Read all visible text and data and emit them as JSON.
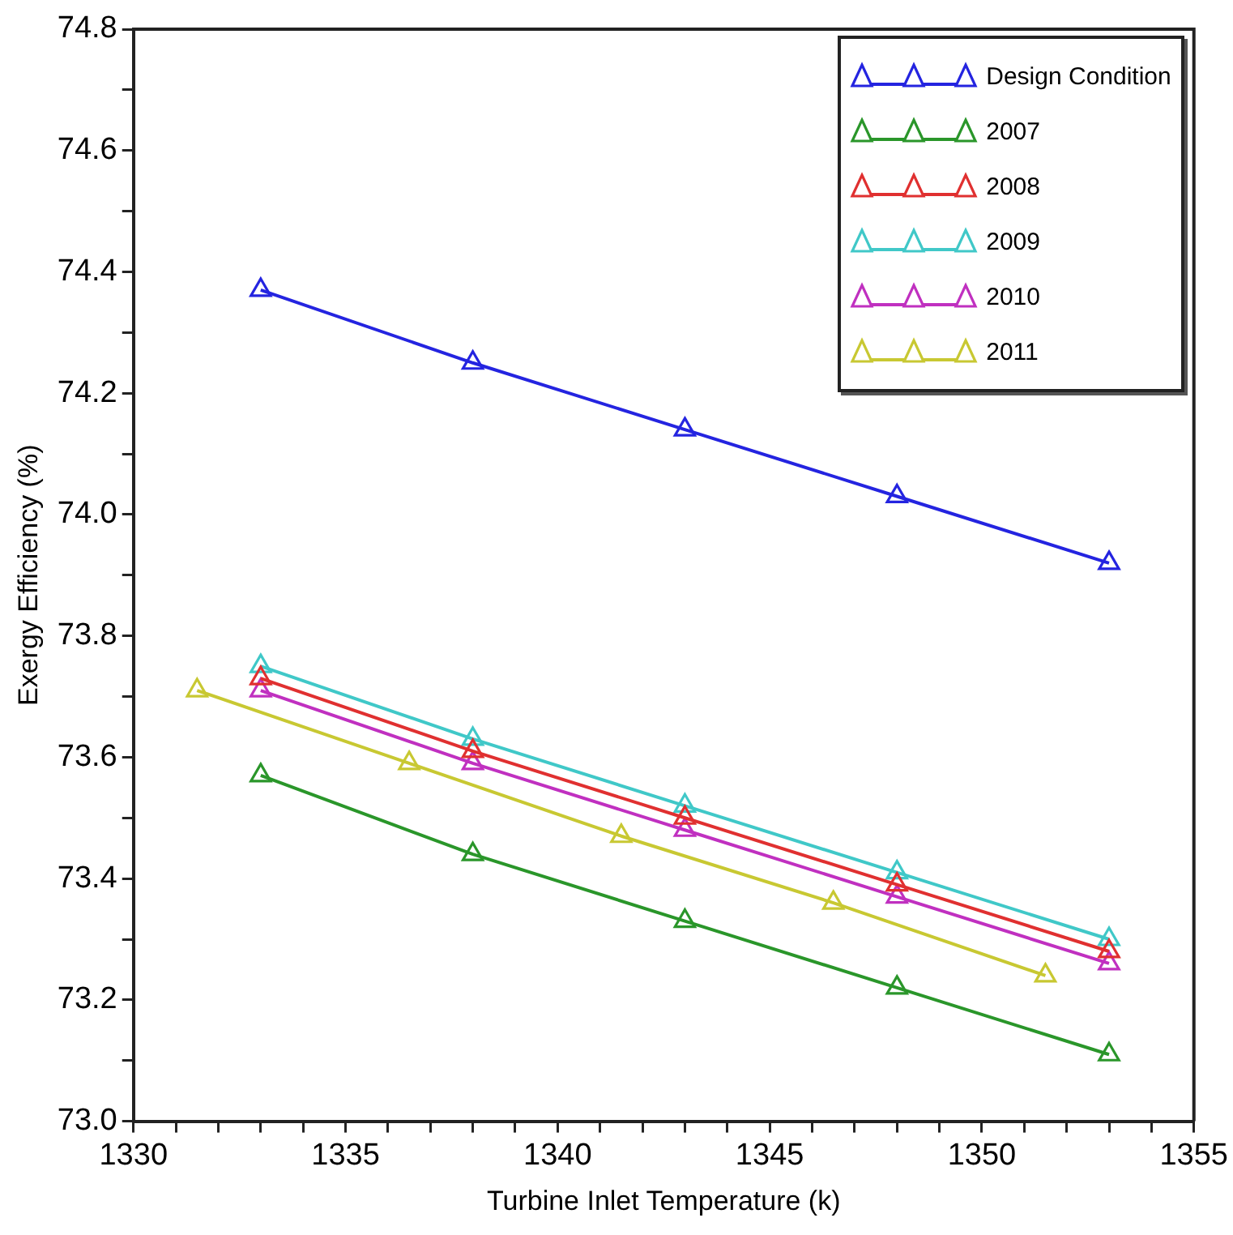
{
  "chart_data": {
    "type": "line",
    "xlabel": "Turbine Inlet Temperature (k)",
    "ylabel": "Exergy Efficiency (%)",
    "xlim": [
      1330,
      1355
    ],
    "xticks": [
      1330,
      {
        "value": 1331,
        "label": null
      },
      {
        "value": 1332,
        "label": null
      },
      {
        "value": 1333,
        "label": null
      },
      {
        "value": 1334,
        "label": null
      },
      1335,
      {
        "value": 1336,
        "label": null
      },
      {
        "value": 1337,
        "label": null
      },
      {
        "value": 1338,
        "label": null
      },
      {
        "value": 1339,
        "label": null
      },
      1340,
      {
        "value": 1341,
        "label": null
      },
      {
        "value": 1342,
        "label": null
      },
      {
        "value": 1343,
        "label": null
      },
      {
        "value": 1344,
        "label": null
      },
      1345,
      {
        "value": 1346,
        "label": null
      },
      {
        "value": 1347,
        "label": null
      },
      {
        "value": 1348,
        "label": null
      },
      {
        "value": 1349,
        "label": null
      },
      1350,
      {
        "value": 1351,
        "label": null
      },
      {
        "value": 1352,
        "label": null
      },
      {
        "value": 1353,
        "label": null
      },
      {
        "value": 1354,
        "label": null
      },
      1355
    ],
    "ylim": [
      73.0,
      74.8
    ],
    "yticks": [
      {
        "value": 73.0,
        "label": "73.0"
      },
      {
        "value": 73.1,
        "label": null
      },
      73.2,
      {
        "value": 73.3,
        "label": null
      },
      73.4,
      {
        "value": 73.5,
        "label": null
      },
      73.6,
      {
        "value": 73.7,
        "label": null
      },
      73.8,
      {
        "value": 73.9,
        "label": null
      },
      {
        "value": 74.0,
        "label": "74.0"
      },
      {
        "value": 74.1,
        "label": null
      },
      74.2,
      {
        "value": 74.3,
        "label": null
      },
      74.4,
      {
        "value": 74.5,
        "label": null
      },
      74.6,
      {
        "value": 74.7,
        "label": null
      },
      74.8
    ],
    "x": [
      1333,
      1338,
      1343,
      1348,
      1353
    ],
    "marker": "triangle",
    "line_style": "solid",
    "grid": false,
    "legend": "top right",
    "series": [
      {
        "name": "Design Condition",
        "color": "#2424e0",
        "values": [
          74.37,
          74.25,
          74.14,
          74.03,
          73.92
        ]
      },
      {
        "name": "2007",
        "color": "#2a962a",
        "values": [
          73.57,
          73.44,
          73.33,
          73.22,
          73.11
        ]
      },
      {
        "name": "2008",
        "color": "#e03030",
        "values": [
          73.73,
          73.61,
          73.5,
          73.39,
          73.28
        ]
      },
      {
        "name": "2009",
        "color": "#40c8c8",
        "values": [
          73.75,
          73.63,
          73.52,
          73.41,
          73.3
        ]
      },
      {
        "name": "2010",
        "color": "#c030c0",
        "values": [
          73.71,
          73.59,
          73.48,
          73.37,
          73.26
        ]
      },
      {
        "name": "2011",
        "color": "#c8c832",
        "x": [
          1331.5,
          1336.5,
          1341.5,
          1346.5,
          1351.5
        ],
        "values": [
          73.71,
          73.59,
          73.47,
          73.36,
          73.24
        ]
      }
    ]
  }
}
